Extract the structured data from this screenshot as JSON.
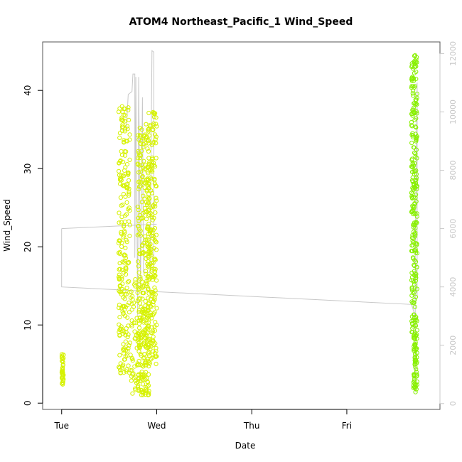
{
  "chart_data": {
    "type": "scatter",
    "title": "ATOM4 Northeast_Pacific_1 Wind_Speed",
    "xlabel": "Date",
    "ylabel": "Wind_Speed",
    "x_tick_labels": [
      "Tue",
      "Wed",
      "Thu",
      "Fri"
    ],
    "x_range_days": [
      -0.2,
      3.98
    ],
    "ylim": [
      -0.8,
      46.2
    ],
    "y_ticks": [
      0,
      10,
      20,
      30,
      40
    ],
    "y2lim": [
      -200,
      12400
    ],
    "y2_ticks": [
      0,
      2000,
      4000,
      6000,
      8000,
      10000,
      12000
    ],
    "y2_color": "#c8c8c8",
    "line_color": "#c8c8c8",
    "grid": false,
    "legend": "none",
    "series": [
      {
        "color": "#d6f200",
        "clusters": [
          {
            "x": [
              0.0,
              0.02
            ],
            "y": [
              2.3,
              6.3
            ]
          },
          {
            "x": [
              0.6,
              0.72
            ],
            "y": [
              3.8,
              38.0
            ]
          },
          {
            "x": [
              0.72,
              0.92
            ],
            "y": [
              1.0,
              16.0
            ]
          },
          {
            "x": [
              0.8,
              0.92
            ],
            "y": [
              1.0,
              36.5
            ]
          },
          {
            "x": [
              0.9,
              1.0
            ],
            "y": [
              5.0,
              37.5
            ]
          }
        ]
      },
      {
        "color": "#88f000",
        "clusters": [
          {
            "x": [
              3.68,
              3.74
            ],
            "y": [
              9.0,
              44.5
            ]
          },
          {
            "x": [
              3.7,
              3.74
            ],
            "y": [
              1.4,
              9.0
            ]
          }
        ]
      }
    ],
    "line_y2": [
      [
        0.0,
        6000
      ],
      [
        0.0,
        4000
      ],
      [
        3.68,
        3400
      ],
      [
        3.72,
        3000
      ],
      [
        3.72,
        400
      ],
      [
        3.72,
        5000
      ],
      [
        3.74,
        11000
      ],
      [
        3.74,
        3600
      ]
    ],
    "line_y2_early": [
      [
        0.0,
        6000
      ],
      [
        1.0,
        6150
      ]
    ],
    "line_y2_wed": [
      [
        0.62,
        9500
      ],
      [
        0.62,
        9400
      ],
      [
        0.68,
        9400
      ],
      [
        0.7,
        10600
      ],
      [
        0.74,
        10700
      ],
      [
        0.75,
        11300
      ],
      [
        0.77,
        11300
      ],
      [
        0.77,
        5000
      ],
      [
        0.78,
        11200
      ],
      [
        0.8,
        3000
      ],
      [
        0.81,
        11200
      ],
      [
        0.83,
        4000
      ],
      [
        0.85,
        10500
      ],
      [
        0.86,
        4500
      ],
      [
        0.93,
        4500
      ],
      [
        0.95,
        12100
      ],
      [
        0.97,
        12050
      ],
      [
        0.97,
        4800
      ]
    ]
  }
}
